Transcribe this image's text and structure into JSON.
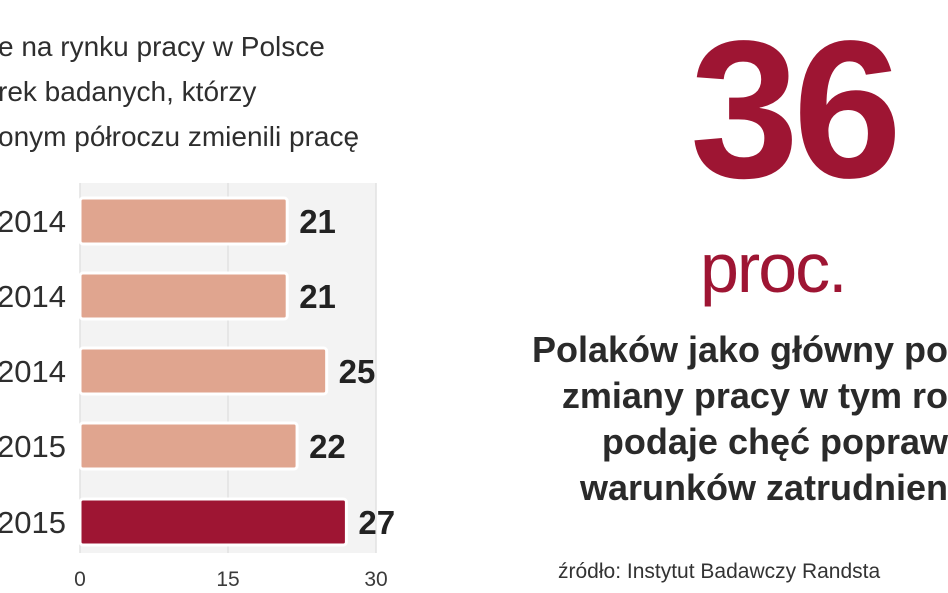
{
  "title_lines": [
    "e na rynku pracy w Polsce",
    "rek  badanych, którzy",
    "onym półroczu zmienili pracę"
  ],
  "chart_data": {
    "type": "bar",
    "orientation": "horizontal",
    "categories": [
      "2014",
      "2014",
      "2014",
      "2015",
      "2015"
    ],
    "values": [
      21,
      21,
      25,
      22,
      27
    ],
    "highlight_index": 4,
    "xlim": [
      0,
      30
    ],
    "xticks": [
      "0",
      "15",
      "30"
    ],
    "colors": {
      "bar": "#e0a58f",
      "highlight": "#9e1533"
    },
    "grid": true
  },
  "highlight": {
    "value": "36",
    "unit": "proc."
  },
  "description_lines": [
    "Polaków jako główny po",
    "zmiany pracy w tym ro",
    "podaje chęć popraw",
    "warunków zatrudnien"
  ],
  "source": "źródło: Instytut Badawczy Randsta"
}
